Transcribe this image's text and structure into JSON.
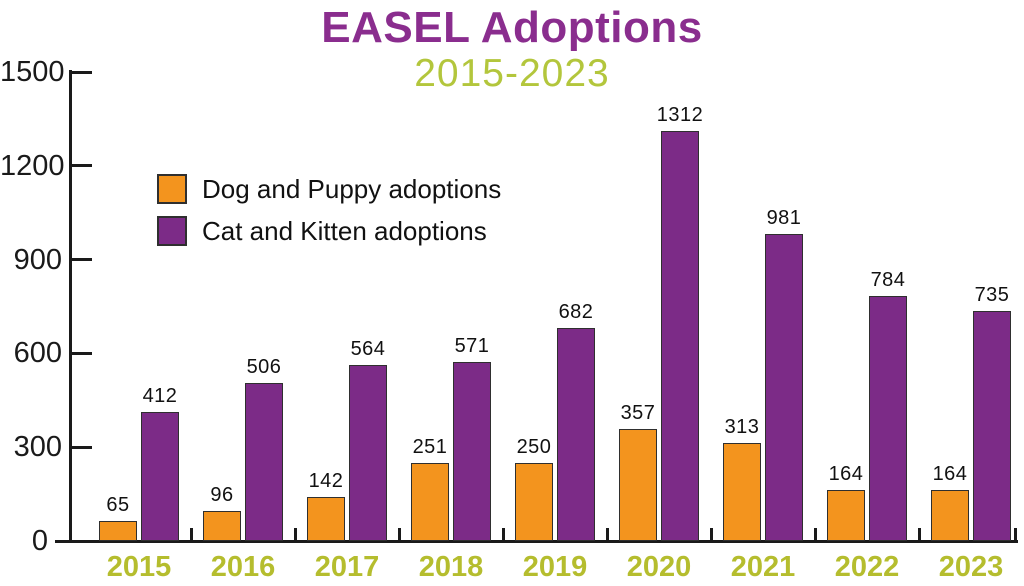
{
  "title": "EASEL Adoptions",
  "subtitle": "2015-2023",
  "colors": {
    "title": "#8A2D8E",
    "subtitle": "#B3C63C",
    "dog_bar": "#F3941E",
    "cat_bar": "#7C2B87",
    "year_label": "#B5BD2E",
    "axis": "#1A1A1A",
    "bar_outline": "#2F2F2F",
    "value_label": "#111111",
    "legend_text": "#111111"
  },
  "legend": {
    "items": [
      {
        "label": "Dog and Puppy adoptions",
        "series": "dog"
      },
      {
        "label": "Cat and Kitten adoptions",
        "series": "cat"
      }
    ]
  },
  "chart_data": {
    "type": "bar",
    "title": "EASEL Adoptions",
    "subtitle": "2015-2023",
    "categories": [
      "2015",
      "2016",
      "2017",
      "2018",
      "2019",
      "2020",
      "2021",
      "2022",
      "2023"
    ],
    "series": [
      {
        "name": "Dog and Puppy adoptions",
        "color": "#F3941E",
        "values": [
          65,
          96,
          142,
          251,
          250,
          357,
          313,
          164,
          164
        ]
      },
      {
        "name": "Cat and Kitten adoptions",
        "color": "#7C2B87",
        "values": [
          412,
          506,
          564,
          571,
          682,
          1312,
          981,
          784,
          735
        ]
      }
    ],
    "ylabel": "",
    "ylim": [
      0,
      1500
    ],
    "yticks": [
      0,
      300,
      600,
      900,
      1200,
      1500
    ],
    "grid": false,
    "legend_position": "upper-left-inside",
    "value_labels": true
  }
}
